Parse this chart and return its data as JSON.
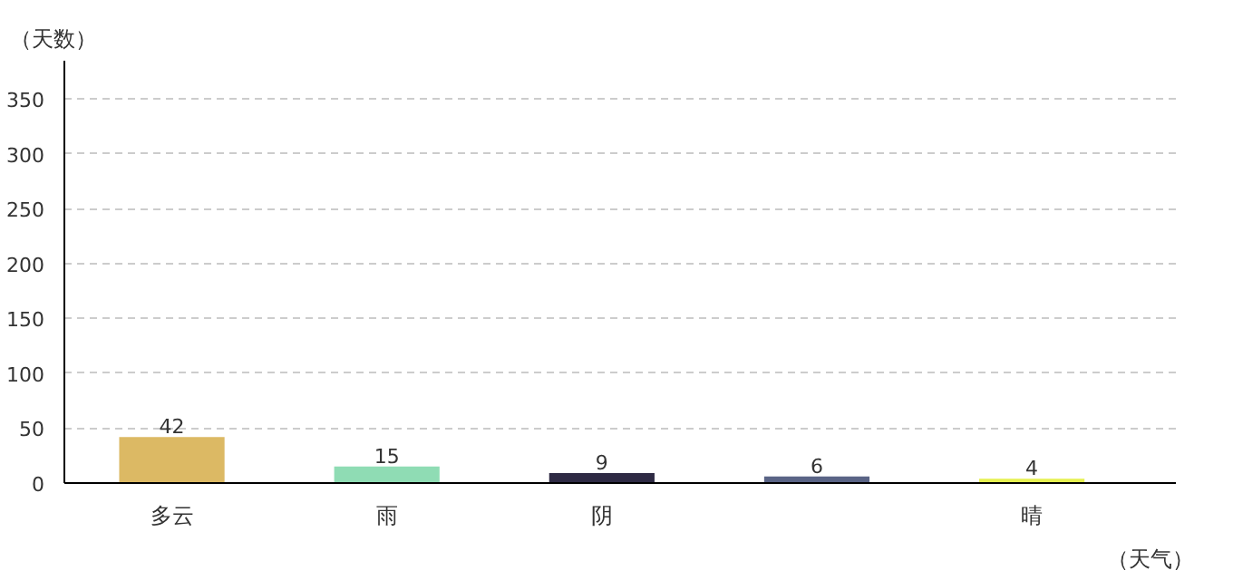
{
  "chart_data": {
    "type": "bar",
    "ylabel": "（天数）",
    "xlabel": "（天气）",
    "categories": [
      "多云",
      "雨",
      "阴",
      null,
      "晴"
    ],
    "values": [
      42,
      15,
      9,
      6,
      4
    ],
    "colors": [
      "#dcb964",
      "#8fdcb4",
      "#2e2a44",
      "#5a6486",
      "#e6f050"
    ],
    "ylim": [
      0,
      385
    ],
    "yticks": [
      0,
      50,
      100,
      150,
      200,
      250,
      300,
      350
    ],
    "grid": "y",
    "data_labels": true
  }
}
